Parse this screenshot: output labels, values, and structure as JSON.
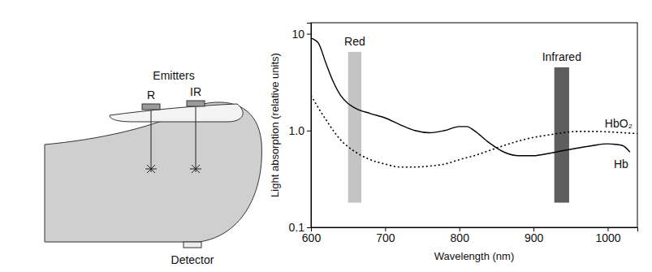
{
  "chart_data": {
    "type": "line",
    "x_label": "Wavelength (nm)",
    "y_label": "Light absorption (relative units)",
    "xlim": [
      600,
      1040
    ],
    "xticks": [
      600,
      700,
      800,
      900,
      1000
    ],
    "ylim": [
      0.1,
      13
    ],
    "yticks": [
      0.1,
      {
        "value": 1,
        "label": "1.0"
      },
      10
    ],
    "log": "y",
    "series": [
      {
        "name": "Hb",
        "color": "#000000",
        "line_style": "solid",
        "x": [
          600,
          610,
          620,
          630,
          640,
          650,
          660,
          680,
          700,
          720,
          740,
          760,
          780,
          800,
          810,
          820,
          840,
          860,
          880,
          900,
          920,
          940,
          960,
          980,
          1000,
          1010,
          1020,
          1030
        ],
        "values": [
          9,
          8,
          5,
          3.2,
          2.3,
          1.9,
          1.7,
          1.5,
          1.35,
          1.15,
          1.0,
          0.95,
          1.0,
          1.1,
          1.1,
          1.0,
          0.75,
          0.6,
          0.55,
          0.55,
          0.58,
          0.62,
          0.66,
          0.7,
          0.73,
          0.72,
          0.7,
          0.6
        ]
      },
      {
        "name": "HbO₂",
        "color": "#000000",
        "line_style": "dotted",
        "x": [
          600,
          620,
          640,
          660,
          680,
          700,
          720,
          740,
          760,
          780,
          800,
          820,
          840,
          860,
          880,
          900,
          920,
          940,
          960,
          980,
          1000,
          1020,
          1040
        ],
        "values": [
          2.3,
          1.3,
          0.8,
          0.6,
          0.5,
          0.45,
          0.42,
          0.42,
          0.43,
          0.45,
          0.5,
          0.55,
          0.62,
          0.7,
          0.78,
          0.85,
          0.9,
          0.95,
          0.98,
          0.98,
          0.97,
          0.95,
          0.93
        ]
      }
    ],
    "bands": [
      {
        "label": "Red",
        "x0": 650,
        "x1": 668,
        "y0": 0.18,
        "y1": 6.5,
        "color": "#c4c4c4"
      },
      {
        "label": "Infrared",
        "x0": 928,
        "x1": 948,
        "y0": 0.18,
        "y1": 4.5,
        "color": "#5e5e5e"
      }
    ]
  },
  "diagram": {
    "emitters_title": "Emitters",
    "emitters": [
      "R",
      "IR"
    ],
    "detector": "Detector"
  }
}
